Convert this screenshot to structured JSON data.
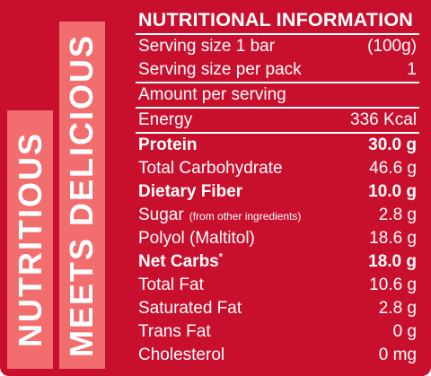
{
  "side_labels": {
    "left": "NUTRITIOUS",
    "right": "MEETS DELICIOUS"
  },
  "panel": {
    "title": "NUTRITIONAL INFORMATION",
    "serving_size": {
      "label": "Serving size 1 bar",
      "value": "(100g)"
    },
    "serving_per_pack": {
      "label": "Serving size per pack",
      "value": "1"
    },
    "amount_per_serving": "Amount per serving",
    "rows": [
      {
        "label": "Energy",
        "value": "336 Kcal"
      },
      {
        "label": "Protein",
        "value": "30.0 g"
      },
      {
        "label": "Total Carbohydrate",
        "value": "46.6 g"
      },
      {
        "label": "Dietary Fiber",
        "value": "10.0 g"
      },
      {
        "label": "Sugar",
        "note": "(from other ingredients)",
        "value": "2.8 g"
      },
      {
        "label": "Polyol (Maltitol)",
        "value": "18.6 g"
      },
      {
        "label": "Net Carbs",
        "sup": "*",
        "value": "18.0 g"
      },
      {
        "label": "Total Fat",
        "value": "10.6 g"
      },
      {
        "label": "Saturated Fat",
        "value": "2.8 g"
      },
      {
        "label": "Trans Fat",
        "value": "0 g"
      },
      {
        "label": "Cholesterol",
        "value": "0 mg"
      }
    ]
  },
  "colors": {
    "background": "#c8102e",
    "side_bar": "#f26d6d",
    "text": "#ffffff"
  }
}
